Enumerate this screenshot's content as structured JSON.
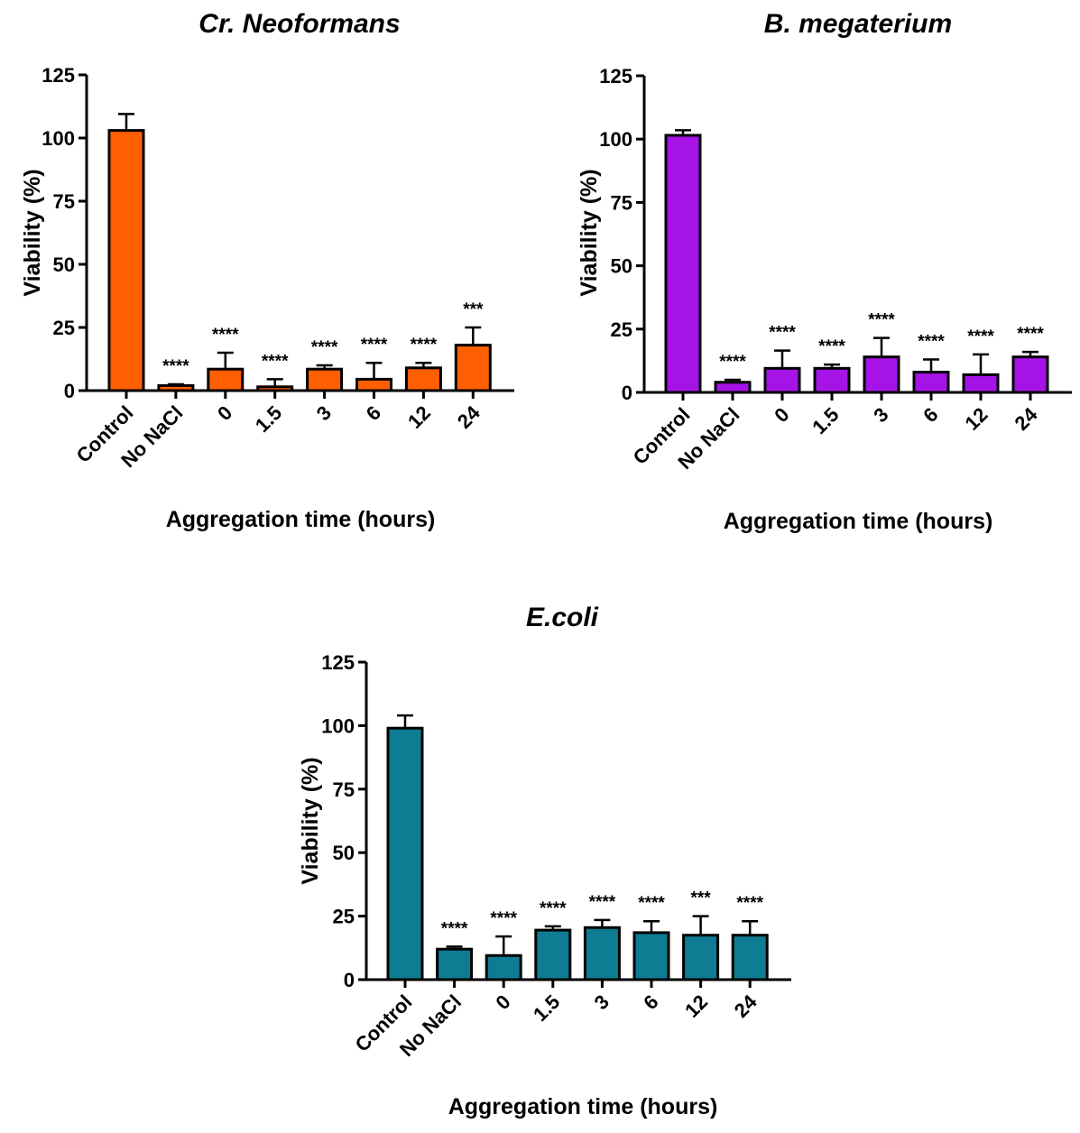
{
  "chart_data": [
    {
      "type": "bar",
      "title": "Cr. Neoformans",
      "xlabel": "Aggregation time (hours)",
      "ylabel": "Viability (%)",
      "ylim": [
        0,
        125
      ],
      "yticks": [
        0,
        25,
        50,
        75,
        100,
        125
      ],
      "color": "#ff5f00",
      "categories": [
        "Control",
        "No NaCl",
        "0",
        "1.5",
        "3",
        "6",
        "12",
        "24"
      ],
      "values": [
        103,
        2,
        8.5,
        1.5,
        8.5,
        4.5,
        9,
        18
      ],
      "errors": [
        6.5,
        0.5,
        6.5,
        3,
        1.5,
        6.5,
        2,
        7
      ],
      "significance": [
        "",
        "****",
        "****",
        "****",
        "****",
        "****",
        "****",
        "***"
      ]
    },
    {
      "type": "bar",
      "title": "B. megaterium",
      "xlabel": "Aggregation time (hours)",
      "ylabel": "Viability (%)",
      "ylim": [
        0,
        125
      ],
      "yticks": [
        0,
        25,
        50,
        75,
        100,
        125
      ],
      "color": "#a513e6",
      "categories": [
        "Control",
        "No NaCl",
        "0",
        "1.5",
        "3",
        "6",
        "12",
        "24"
      ],
      "values": [
        101.5,
        4,
        9.5,
        9.5,
        14,
        8,
        7,
        14
      ],
      "errors": [
        2,
        1,
        7,
        1.5,
        7.5,
        5,
        8,
        2
      ],
      "significance": [
        "",
        "****",
        "****",
        "****",
        "****",
        "****",
        "****",
        "****"
      ]
    },
    {
      "type": "bar",
      "title": "E.coli",
      "xlabel": "Aggregation time (hours)",
      "ylabel": "Viability (%)",
      "ylim": [
        0,
        125
      ],
      "yticks": [
        0,
        25,
        50,
        75,
        100,
        125
      ],
      "color": "#0e7c93",
      "categories": [
        "Control",
        "No NaCl",
        "0",
        "1.5",
        "3",
        "6",
        "12",
        "24"
      ],
      "values": [
        99,
        12,
        9.5,
        19.5,
        20.5,
        18.5,
        17.5,
        17.5
      ],
      "errors": [
        5,
        1,
        7.5,
        1.5,
        3,
        4.5,
        7.5,
        5.5
      ],
      "significance": [
        "",
        "****",
        "****",
        "****",
        "****",
        "****",
        "***",
        "****"
      ]
    }
  ]
}
